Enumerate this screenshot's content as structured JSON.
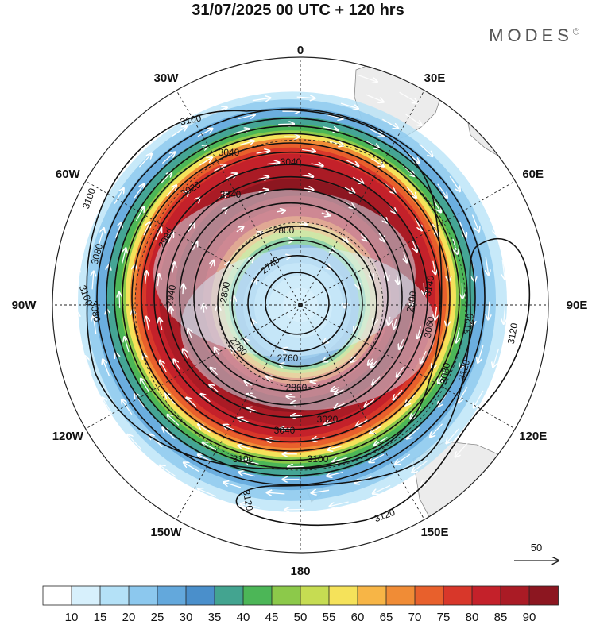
{
  "title": "31/07/2025  00 UTC  + 120 hrs",
  "brand": "MODES",
  "brand_mark": "©",
  "meridian_labels": [
    {
      "text": "0",
      "deg": 0
    },
    {
      "text": "30E",
      "deg": 30
    },
    {
      "text": "60E",
      "deg": 60
    },
    {
      "text": "90E",
      "deg": 90
    },
    {
      "text": "120E",
      "deg": 120
    },
    {
      "text": "150E",
      "deg": 150
    },
    {
      "text": "180",
      "deg": 180
    },
    {
      "text": "150W",
      "deg": 210
    },
    {
      "text": "120W",
      "deg": 240
    },
    {
      "text": "90W",
      "deg": 270
    },
    {
      "text": "60W",
      "deg": 300
    },
    {
      "text": "30W",
      "deg": 330
    }
  ],
  "contour_labels": [
    "3100",
    "3100",
    "3100",
    "3100",
    "3100",
    "3080",
    "3080",
    "3080",
    "3060",
    "3040",
    "3040",
    "3040",
    "3020",
    "3020",
    "2980",
    "2940",
    "2900",
    "2860",
    "2840",
    "2800",
    "2800",
    "2780",
    "2760",
    "2740",
    "3120",
    "3120",
    "3120",
    "3120",
    "3120",
    "3140"
  ],
  "vector_reference": {
    "value": "50"
  },
  "colorbar": {
    "ticks": [
      "10",
      "15",
      "20",
      "25",
      "30",
      "35",
      "40",
      "45",
      "50",
      "55",
      "60",
      "65",
      "70",
      "75",
      "80",
      "85",
      "90"
    ],
    "colors": [
      "#ffffff",
      "#d7f0fc",
      "#b4e1f7",
      "#8cc8ee",
      "#63a8dc",
      "#4a8fcb",
      "#43a490",
      "#4cb657",
      "#8cc94a",
      "#c6dc52",
      "#f5e25a",
      "#f7b546",
      "#f08c36",
      "#e8602c",
      "#d8372a",
      "#c4212a",
      "#aa1b25",
      "#8c1620"
    ]
  }
}
